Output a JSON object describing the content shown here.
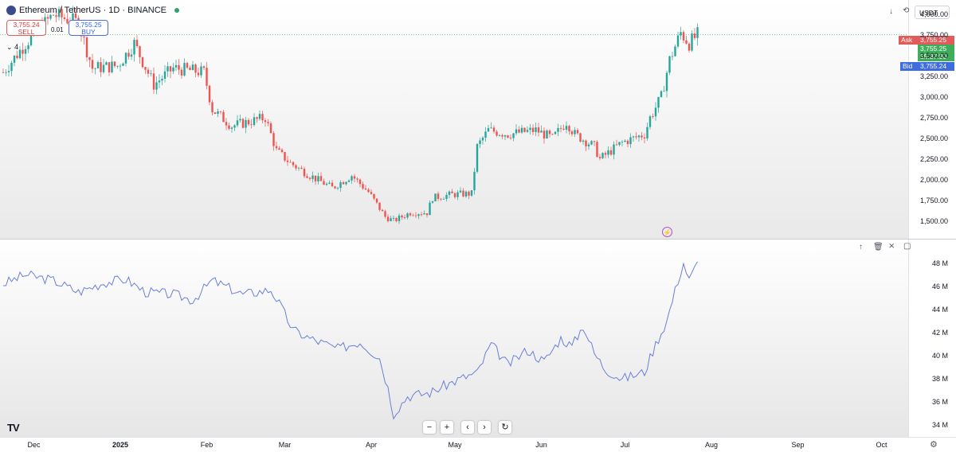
{
  "header": {
    "symbol": "Ethereum / TetherUS · 1D · BINANCE",
    "sell_price": "3,755.24",
    "sell_label": "SELL",
    "buy_price": "3,755.25",
    "buy_label": "BUY",
    "spread": "0.01",
    "collapse_count": "4",
    "currency": "USDT"
  },
  "price_tags": {
    "ask_label": "Ask",
    "ask": "3,755.25",
    "last": "3,755.25",
    "countdown": "15:37:30",
    "bid_label": "Bid",
    "bid": "3,755.24"
  },
  "colors": {
    "up": "#26a69a",
    "down": "#ef5350",
    "volume_line": "#6b7fd7",
    "ask_tag": "#e25b5b",
    "last_tag": "#3fae5a",
    "bid_tag": "#3d6be0",
    "logo_circle": "#3a4a8a"
  },
  "icons": {
    "logo": "ethereum-coin-icon",
    "market_status": "green-dot-icon",
    "top_toolbar": [
      "arrow-down-icon",
      "refresh-icon"
    ],
    "pane_toolbar": [
      "arrow-up-icon",
      "trash-icon",
      "collapse-icon",
      "maximize-icon"
    ],
    "nav": [
      "zoom-out-icon",
      "zoom-in-icon",
      "scroll-left-icon",
      "scroll-right-icon",
      "reset-icon"
    ],
    "brand": "tradingview-logo",
    "alert": "lightning-icon",
    "settings": "settings-icon"
  },
  "nav_buttons": {
    "zoom_out": "−",
    "zoom_in": "+",
    "left": "‹",
    "right": "›",
    "reset": "↻"
  },
  "brand": "TV",
  "time_axis": {
    "labels": [
      "Dec",
      "2025",
      "Feb",
      "Mar",
      "Apr",
      "May",
      "Jun",
      "Jul",
      "Aug",
      "Sep",
      "Oct"
    ]
  },
  "chart_data": [
    {
      "type": "candlestick",
      "title": "Ethereum / TetherUS · 1D · BINANCE",
      "ylim": [
        1380,
        4080
      ],
      "yticks": [
        4000,
        3750,
        3500,
        3250,
        3000,
        2750,
        2500,
        2250,
        2000,
        1750,
        1500
      ],
      "ytick_labels": [
        "4,000.00",
        "3,750.00",
        "3,500.00",
        "3,250.00",
        "3,000.00",
        "2,750.00",
        "2,500.00",
        "2,250.00",
        "2,000.00",
        "1,750.00",
        "1,500.00"
      ],
      "current_price": 3755.25,
      "close_anchors": [
        [
          "2024-11-20",
          3300
        ],
        [
          "2024-11-28",
          3650
        ],
        [
          "2024-12-08",
          4000
        ],
        [
          "2024-12-17",
          3900
        ],
        [
          "2024-12-22",
          3350
        ],
        [
          "2024-12-31",
          3380
        ],
        [
          "2025-01-06",
          3650
        ],
        [
          "2025-01-13",
          3150
        ],
        [
          "2025-01-20",
          3350
        ],
        [
          "2025-01-31",
          3300
        ],
        [
          "2025-02-03",
          2850
        ],
        [
          "2025-02-10",
          2650
        ],
        [
          "2025-02-22",
          2750
        ],
        [
          "2025-02-26",
          2350
        ],
        [
          "2025-03-03",
          2200
        ],
        [
          "2025-03-10",
          2050
        ],
        [
          "2025-03-18",
          1900
        ],
        [
          "2025-03-25",
          2050
        ],
        [
          "2025-03-31",
          1850
        ],
        [
          "2025-04-06",
          1550
        ],
        [
          "2025-04-09",
          1500
        ],
        [
          "2025-04-15",
          1600
        ],
        [
          "2025-04-21",
          1600
        ],
        [
          "2025-04-23",
          1780
        ],
        [
          "2025-04-30",
          1820
        ],
        [
          "2025-05-07",
          1830
        ],
        [
          "2025-05-09",
          2400
        ],
        [
          "2025-05-13",
          2600
        ],
        [
          "2025-05-20",
          2550
        ],
        [
          "2025-05-30",
          2600
        ],
        [
          "2025-06-05",
          2500
        ],
        [
          "2025-06-10",
          2700
        ],
        [
          "2025-06-13",
          2550
        ],
        [
          "2025-06-20",
          2400
        ],
        [
          "2025-06-22",
          2250
        ],
        [
          "2025-06-30",
          2450
        ],
        [
          "2025-07-08",
          2550
        ],
        [
          "2025-07-10",
          2750
        ],
        [
          "2025-07-14",
          3000
        ],
        [
          "2025-07-17",
          3450
        ],
        [
          "2025-07-21",
          3780
        ],
        [
          "2025-07-24",
          3650
        ],
        [
          "2025-07-27",
          3755
        ]
      ]
    },
    {
      "type": "line",
      "series": [
        {
          "values_note_only": false
        }
      ],
      "ylim": [
        33.2,
        49.0
      ],
      "yticks": [
        48,
        46,
        44,
        42,
        40,
        38,
        36,
        34
      ],
      "ytick_labels": [
        "48 M",
        "46 M",
        "44 M",
        "42 M",
        "40 M",
        "38 M",
        "36 M",
        "34 M"
      ],
      "points": [
        [
          "2024-11-20",
          46.2
        ],
        [
          "2024-11-28",
          47.0
        ],
        [
          "2024-12-08",
          46.5
        ],
        [
          "2024-12-17",
          45.5
        ],
        [
          "2024-12-26",
          46.3
        ],
        [
          "2025-01-03",
          46.6
        ],
        [
          "2025-01-10",
          45.5
        ],
        [
          "2025-01-20",
          45.3
        ],
        [
          "2025-01-27",
          44.8
        ],
        [
          "2025-02-03",
          46.5
        ],
        [
          "2025-02-14",
          45.3
        ],
        [
          "2025-02-24",
          45.7
        ],
        [
          "2025-02-27",
          44.5
        ],
        [
          "2025-03-04",
          42.2
        ],
        [
          "2025-03-10",
          41.5
        ],
        [
          "2025-03-20",
          40.6
        ],
        [
          "2025-03-28",
          41.2
        ],
        [
          "2025-04-04",
          39.8
        ],
        [
          "2025-04-07",
          37.2
        ],
        [
          "2025-04-09",
          35.0
        ],
        [
          "2025-04-14",
          36.5
        ],
        [
          "2025-04-22",
          36.8
        ],
        [
          "2025-04-28",
          37.5
        ],
        [
          "2025-05-05",
          38.2
        ],
        [
          "2025-05-09",
          38.5
        ],
        [
          "2025-05-14",
          41.0
        ],
        [
          "2025-05-20",
          39.2
        ],
        [
          "2025-05-27",
          40.5
        ],
        [
          "2025-06-02",
          39.5
        ],
        [
          "2025-06-08",
          41.5
        ],
        [
          "2025-06-12",
          40.8
        ],
        [
          "2025-06-16",
          42.6
        ],
        [
          "2025-06-20",
          40.2
        ],
        [
          "2025-06-24",
          38.8
        ],
        [
          "2025-06-30",
          38.0
        ],
        [
          "2025-07-08",
          38.6
        ],
        [
          "2025-07-12",
          41.0
        ],
        [
          "2025-07-16",
          43.0
        ],
        [
          "2025-07-20",
          46.5
        ],
        [
          "2025-07-22",
          48.0
        ],
        [
          "2025-07-24",
          46.5
        ],
        [
          "2025-07-27",
          48.0
        ]
      ]
    }
  ]
}
